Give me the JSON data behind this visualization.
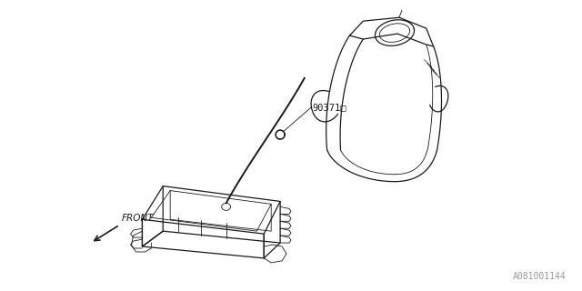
{
  "bg_color": "#ffffff",
  "line_color": "#1a1a1a",
  "fig_width": 6.4,
  "fig_height": 3.2,
  "dpi": 100,
  "watermark_text": "A081001144",
  "watermark_color": "#999999",
  "watermark_fontsize": 7,
  "part_number_text": "90371□",
  "part_number_fontsize": 7.5
}
